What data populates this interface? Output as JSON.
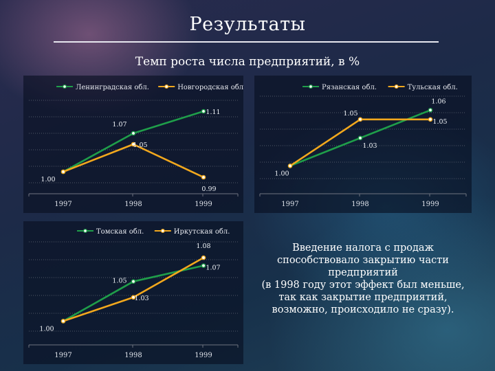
{
  "page": {
    "title": "Результаты",
    "subtitle": "Темп роста числа предприятий, в %",
    "note": [
      "Введение налога с продаж",
      "способствовало закрытию части",
      "предприятий",
      "(в 1998 году этот эффект был меньше,",
      "так как закрытие предприятий,",
      "возможно, происходило не сразу)."
    ]
  },
  "colors": {
    "green": "#1f9e4a",
    "orange": "#f2a81d",
    "axis": "#6f7480",
    "grid": "#4f5666"
  },
  "chart_data": [
    {
      "type": "line",
      "categories": [
        "1997",
        "1998",
        "1999"
      ],
      "series": [
        {
          "name": "Ленинградская обл.",
          "color": "#1f9e4a",
          "values": [
            1.0,
            1.07,
            1.11
          ],
          "labels": [
            "1.00",
            "1.07",
            "1.11"
          ]
        },
        {
          "name": "Новгородская обл.",
          "color": "#f2a81d",
          "values": [
            1.0,
            1.05,
            0.99
          ],
          "labels": [
            "",
            "1.05",
            "0.99"
          ]
        }
      ],
      "ylim": [
        0.96,
        1.13
      ],
      "grid": true,
      "legend": "top-left"
    },
    {
      "type": "line",
      "categories": [
        "1997",
        "1998",
        "1999"
      ],
      "series": [
        {
          "name": "Рязанская обл.",
          "color": "#1f9e4a",
          "values": [
            1.0,
            1.03,
            1.06
          ],
          "labels": [
            "1.00",
            "1.03",
            "1.06"
          ]
        },
        {
          "name": "Тульская обл.",
          "color": "#f2a81d",
          "values": [
            1.0,
            1.05,
            1.05
          ],
          "labels": [
            "",
            "1.05",
            "1.05"
          ]
        }
      ],
      "ylim": [
        0.97,
        1.075
      ],
      "grid": true,
      "legend": "top-right"
    },
    {
      "type": "line",
      "categories": [
        "1997",
        "1998",
        "1999"
      ],
      "series": [
        {
          "name": "Томская обл.",
          "color": "#1f9e4a",
          "values": [
            1.0,
            1.05,
            1.07
          ],
          "labels": [
            "1.00",
            "1.05",
            "1.07"
          ]
        },
        {
          "name": "Иркутская обл.",
          "color": "#f2a81d",
          "values": [
            1.0,
            1.03,
            1.08
          ],
          "labels": [
            "",
            "1.03",
            "1.08"
          ]
        }
      ],
      "ylim": [
        0.97,
        1.1
      ],
      "grid": true,
      "legend": "top-left"
    }
  ]
}
